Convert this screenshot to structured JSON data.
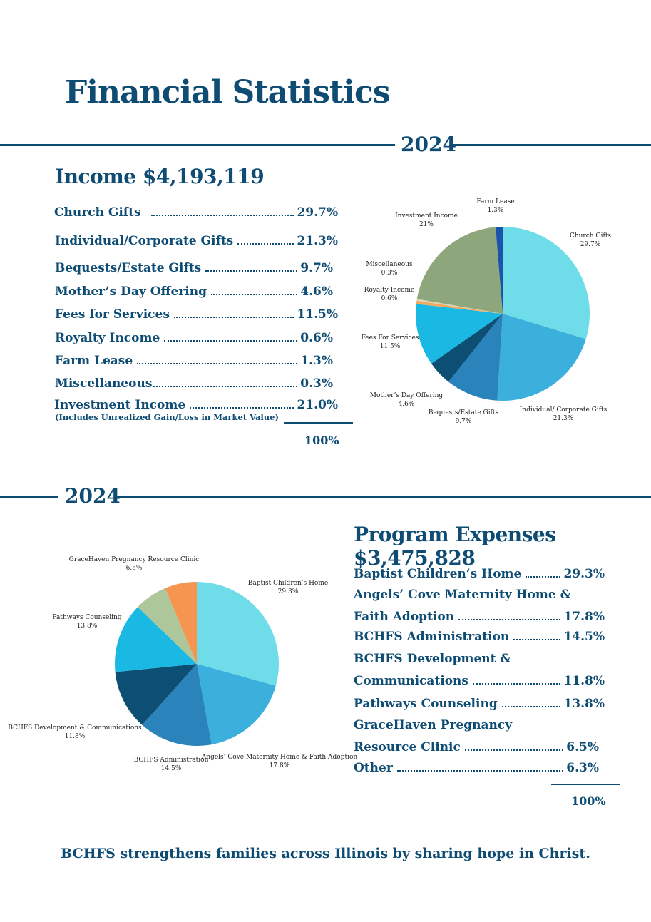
{
  "page": {
    "title": "Financial Statistics",
    "footer": "BCHFS strengthens families across Illinois by sharing hope in Christ."
  },
  "income": {
    "year": "2024",
    "title": "Income $4,193,119",
    "rows": [
      {
        "label": "Church Gifts",
        "value": "29.7%"
      },
      {
        "label": "Individual/Corporate Gifts",
        "value": "21.3%"
      },
      {
        "label": "Bequests/Estate Gifts",
        "value": "9.7%"
      },
      {
        "label": "Mother’s Day Offering",
        "value": "4.6%"
      },
      {
        "label": "Fees for Services",
        "value": "11.5%"
      },
      {
        "label": "Royalty Income",
        "value": "0.6%"
      },
      {
        "label": "Farm Lease",
        "value": "1.3%"
      },
      {
        "label": "Miscellaneous",
        "value": "0.3%"
      },
      {
        "label": "Investment Income",
        "value": "21.0%"
      }
    ],
    "note": "(Includes Unrealized Gain/Loss in Market Value)",
    "total": "100%"
  },
  "expenses": {
    "year": "2024",
    "title": "Program Expenses $3,475,828",
    "rows": [
      {
        "label": "Baptist Children’s Home",
        "value": "29.3%"
      },
      {
        "label": "Faith Adoption",
        "value": "17.8%",
        "line1": "Angels’ Cove Maternity Home &"
      },
      {
        "label": "BCHFS Administration",
        "value": "14.5%"
      },
      {
        "label": "Communications",
        "value": "11.8%",
        "line1": "BCHFS Development &"
      },
      {
        "label": "Pathways Counseling",
        "value": "13.8%"
      },
      {
        "label": "Resource Clinic",
        "value": "6.5%",
        "line1": "GraceHaven Pregnancy"
      },
      {
        "label": "Other",
        "value": "6.3%"
      }
    ],
    "total": "100%"
  },
  "chart_data": [
    {
      "type": "pie",
      "title": "Income 2024",
      "start_angle_deg": 0,
      "slices": [
        {
          "name": "Church Gifts",
          "label": "Church Gifts",
          "pct": "29.7%",
          "value": 29.7,
          "color": "#6fdde9"
        },
        {
          "name": "Individual/ Corporate Gifts",
          "label": "Individual/ Corporate Gifts",
          "pct": "21.3%",
          "value": 21.3,
          "color": "#3bb0dd"
        },
        {
          "name": "Bequests/Estate Gifts",
          "label": "Bequests/Estate Gifts",
          "pct": "9.7%",
          "value": 9.7,
          "color": "#2a83bb"
        },
        {
          "name": "Mother’s Day Offering",
          "label": "Mother’s Day Offering",
          "pct": "4.6%",
          "value": 4.6,
          "color": "#0d4f74"
        },
        {
          "name": "Fees For Services",
          "label": "Fees For Services",
          "pct": "11.5%",
          "value": 11.5,
          "color": "#1ab9e3"
        },
        {
          "name": "Royalty Income",
          "label": "Royalty Income",
          "pct": "0.6%",
          "value": 0.6,
          "color": "#f2a861"
        },
        {
          "name": "Miscellaneous",
          "label": "Miscellaneous",
          "pct": "0.3%",
          "value": 0.3,
          "color": "#d9d9b5"
        },
        {
          "name": "Investment Income",
          "label": "Investment Income",
          "pct": "21%",
          "value": 21.0,
          "color": "#8da67c"
        },
        {
          "name": "Farm Lease",
          "label": "Farm Lease",
          "pct": "1.3%",
          "value": 1.3,
          "color": "#1a55aa"
        }
      ]
    },
    {
      "type": "pie",
      "title": "Program Expenses 2024",
      "start_angle_deg": 0,
      "slices": [
        {
          "name": "Baptist Children’s Home",
          "label": "Baptist Children’s Home",
          "pct": "29.3%",
          "value": 29.3,
          "color": "#6fdde9"
        },
        {
          "name": "Angels’ Cove Maternity Home & Faith Adoption",
          "label": "Angels’ Cove Maternity Home & Faith Adoption",
          "pct": "17.8%",
          "value": 17.8,
          "color": "#3bb0dd"
        },
        {
          "name": "BCHFS Administration",
          "label": "BCHFS Administration",
          "pct": "14.5%",
          "value": 14.5,
          "color": "#2a83bb"
        },
        {
          "name": "BCHFS Development & Communications",
          "label": "BCHFS Development & Communications",
          "pct": "11.8%",
          "value": 11.8,
          "color": "#0d4f74"
        },
        {
          "name": "Pathways Counseling",
          "label": "Pathways Counseling",
          "pct": "13.8%",
          "value": 13.8,
          "color": "#1ab9e3"
        },
        {
          "name": "GraceHaven Pregnancy Resource Clinic",
          "label": "GraceHaven Pregnancy Resource Clinic",
          "pct": "6.5%",
          "value": 6.5,
          "color": "#aec79a"
        },
        {
          "name": "Other",
          "value": 6.3,
          "color": "#f59550"
        }
      ]
    }
  ]
}
